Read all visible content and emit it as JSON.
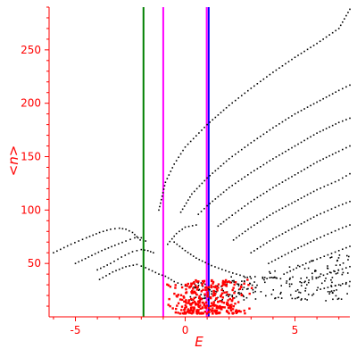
{
  "chart_data": {
    "type": "scatter",
    "xlabel": "E",
    "ylabel": "<n>",
    "xlim": [
      -6.2,
      7.5
    ],
    "ylim": [
      0,
      290
    ],
    "x_ticks": [
      -5,
      0,
      5
    ],
    "y_ticks": [
      50,
      100,
      150,
      200,
      250
    ],
    "grid": false,
    "vertical_lines": [
      {
        "x": -1.9,
        "color": "#008000"
      },
      {
        "x": -1.0,
        "color": "#ff00ff"
      },
      {
        "x": 0.98,
        "color": "#ff00ff"
      },
      {
        "x": 1.07,
        "color": "#0000ff"
      }
    ],
    "colors": {
      "axis": "#ff0000",
      "low_states": "#000000",
      "cluster": "#ff0000"
    },
    "series": [
      {
        "color": "#000000",
        "points": [
          [
            -6.0,
            60
          ],
          [
            -5.2,
            68
          ],
          [
            -4.5,
            74
          ],
          [
            -3.9,
            79
          ],
          [
            -3.4,
            82
          ],
          [
            -3.0,
            83
          ],
          [
            -2.7,
            82
          ],
          [
            -2.4,
            79
          ],
          [
            -2.2,
            75
          ],
          [
            -2.05,
            72
          ]
        ]
      },
      {
        "color": "#000000",
        "points": [
          [
            -5.0,
            50
          ],
          [
            -4.4,
            56
          ],
          [
            -3.8,
            62
          ],
          [
            -3.2,
            67
          ],
          [
            -2.7,
            71
          ],
          [
            -2.3,
            74
          ],
          [
            -2.0,
            74
          ],
          [
            -1.8,
            71
          ]
        ]
      },
      {
        "color": "#000000",
        "points": [
          [
            -4.0,
            44
          ],
          [
            -3.4,
            50
          ],
          [
            -2.9,
            56
          ],
          [
            -2.4,
            61
          ],
          [
            -2.0,
            63
          ],
          [
            -1.7,
            62
          ],
          [
            -1.45,
            60
          ]
        ]
      },
      {
        "color": "#000000",
        "points": [
          [
            -3.9,
            35
          ],
          [
            -3.3,
            42
          ],
          [
            -2.7,
            47
          ],
          [
            -2.2,
            49
          ],
          [
            -1.8,
            46
          ],
          [
            -1.5,
            43
          ],
          [
            -1.2,
            40
          ],
          [
            -0.9,
            38
          ],
          [
            -0.5,
            33
          ],
          [
            0.0,
            29
          ]
        ]
      },
      {
        "color": "#000000",
        "points": [
          [
            -1.2,
            100
          ],
          [
            -0.9,
            126
          ],
          [
            -0.5,
            143
          ],
          [
            0.0,
            159
          ],
          [
            1.0,
            180
          ],
          [
            2.0,
            198
          ],
          [
            3.0,
            214
          ],
          [
            4.0,
            229
          ],
          [
            5.0,
            243
          ],
          [
            6.0,
            256
          ],
          [
            7.0,
            270
          ],
          [
            7.5,
            288
          ]
        ]
      },
      {
        "color": "#000000",
        "points": [
          [
            -0.2,
            98
          ],
          [
            0.3,
            115
          ],
          [
            1.0,
            130
          ],
          [
            2.0,
            148
          ],
          [
            3.0,
            163
          ],
          [
            4.0,
            177
          ],
          [
            5.0,
            190
          ],
          [
            6.0,
            201
          ],
          [
            7.0,
            212
          ],
          [
            7.5,
            217
          ]
        ]
      },
      {
        "color": "#000000",
        "points": [
          [
            0.6,
            96
          ],
          [
            1.0,
            104
          ],
          [
            2.0,
            121
          ],
          [
            3.0,
            135
          ],
          [
            4.0,
            148
          ],
          [
            5.0,
            160
          ],
          [
            6.0,
            172
          ],
          [
            7.0,
            182
          ],
          [
            7.5,
            186
          ]
        ]
      },
      {
        "color": "#000000",
        "points": [
          [
            1.5,
            85
          ],
          [
            2.0,
            93
          ],
          [
            3.0,
            108
          ],
          [
            4.0,
            121
          ],
          [
            5.0,
            133
          ],
          [
            6.0,
            145
          ],
          [
            7.0,
            155
          ],
          [
            7.5,
            160
          ]
        ]
      },
      {
        "color": "#000000",
        "points": [
          [
            2.2,
            72
          ],
          [
            3.0,
            84
          ],
          [
            4.0,
            97
          ],
          [
            5.0,
            108
          ],
          [
            6.0,
            119
          ],
          [
            7.0,
            128
          ],
          [
            7.5,
            134
          ]
        ]
      },
      {
        "color": "#000000",
        "points": [
          [
            3.0,
            60
          ],
          [
            4.0,
            73
          ],
          [
            5.0,
            84
          ],
          [
            6.0,
            95
          ],
          [
            7.0,
            104
          ],
          [
            7.5,
            108
          ]
        ]
      },
      {
        "color": "#000000",
        "points": [
          [
            3.8,
            50
          ],
          [
            5.0,
            63
          ],
          [
            6.0,
            73
          ],
          [
            7.0,
            82
          ],
          [
            7.5,
            86
          ]
        ]
      },
      {
        "color": "#000000",
        "points": [
          [
            4.5,
            40
          ],
          [
            5.5,
            50
          ],
          [
            6.5,
            58
          ],
          [
            7.5,
            66
          ]
        ]
      },
      {
        "color": "#000000",
        "points": [
          [
            5.3,
            32
          ],
          [
            6.3,
            39
          ],
          [
            7.5,
            47
          ]
        ]
      },
      {
        "color": "#000000",
        "points": [
          [
            6.0,
            25
          ],
          [
            7.0,
            30
          ],
          [
            7.5,
            33
          ]
        ]
      },
      {
        "color": "#000000",
        "points": [
          [
            -0.5,
            70
          ],
          [
            0.0,
            62
          ],
          [
            0.5,
            55
          ],
          [
            1.2,
            48
          ],
          [
            2.0,
            42
          ],
          [
            3.0,
            36
          ]
        ]
      },
      {
        "color": "#000000",
        "points": [
          [
            -0.8,
            68
          ],
          [
            -0.4,
            78
          ],
          [
            0.0,
            84
          ],
          [
            0.5,
            86
          ]
        ]
      }
    ],
    "scatter_regions": [
      {
        "color": "#000000",
        "x": [
          0.2,
          7.5
        ],
        "y": [
          15,
          60
        ],
        "density": 220
      },
      {
        "color": "#ff0000",
        "x": [
          -1.3,
          2.9
        ],
        "y": [
          3,
          35
        ],
        "density": 320
      }
    ]
  }
}
